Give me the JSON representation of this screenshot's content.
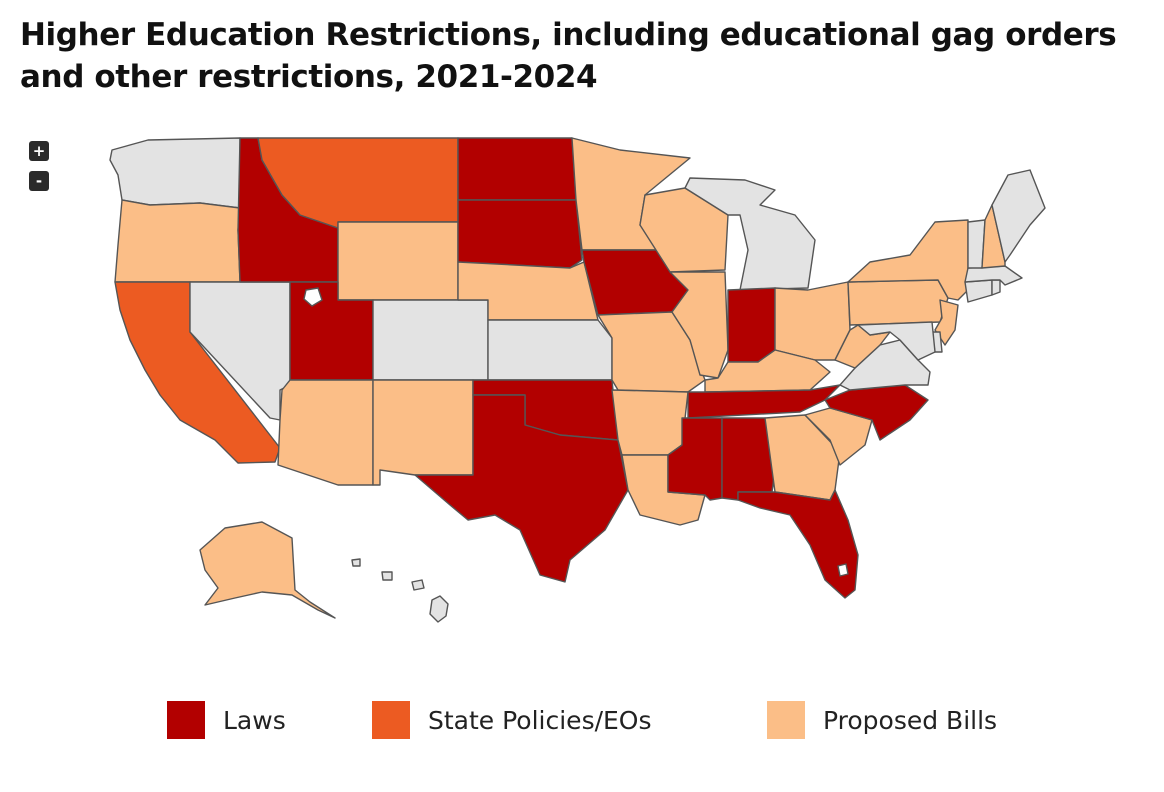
{
  "title": "Higher Education Restrictions, including educational gag orders and other restrictions, 2021-2024",
  "zoom": {
    "in_label": "+",
    "out_label": "-"
  },
  "colors": {
    "laws": "#b20000",
    "policies": "#ec5b22",
    "proposed": "#fbbe87",
    "none": "#e3e3e3"
  },
  "legend": [
    {
      "key": "laws",
      "label": "Laws"
    },
    {
      "key": "policies",
      "label": "State Policies/EOs"
    },
    {
      "key": "proposed",
      "label": "Proposed Bills"
    }
  ],
  "states": {
    "WA": "none",
    "OR": "proposed",
    "CA": "policies",
    "NV": "none",
    "ID": "laws",
    "MT": "policies",
    "WY": "proposed",
    "UT": "laws",
    "AZ": "proposed",
    "CO": "none",
    "NM": "proposed",
    "ND": "laws",
    "SD": "laws",
    "NE": "proposed",
    "KS": "none",
    "OK": "laws",
    "TX": "laws",
    "MN": "proposed",
    "IA": "laws",
    "MO": "proposed",
    "AR": "proposed",
    "LA": "proposed",
    "WI": "proposed",
    "IL": "proposed",
    "MI": "none",
    "IN": "laws",
    "OH": "proposed",
    "KY": "proposed",
    "TN": "laws",
    "MS": "laws",
    "AL": "laws",
    "GA": "proposed",
    "FL": "laws",
    "SC": "proposed",
    "NC": "laws",
    "VA": "none",
    "WV": "proposed",
    "PA": "proposed",
    "NY": "proposed",
    "NJ": "proposed",
    "DE": "none",
    "MD": "none",
    "CT": "none",
    "RI": "none",
    "MA": "none",
    "VT": "none",
    "NH": "proposed",
    "ME": "none",
    "AK": "proposed",
    "HI": "none"
  }
}
